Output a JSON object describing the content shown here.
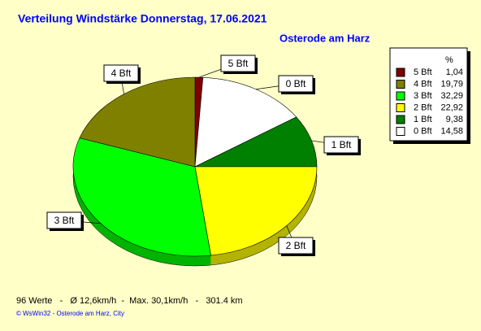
{
  "chart_data": {
    "type": "pie",
    "title": "Verteilung Windstärke  Donnerstag, 17.06.2021",
    "subtitle": "Osterode am Harz",
    "legend_header": "%",
    "categories": [
      "5 Bft",
      "0 Bft",
      "1 Bft",
      "2 Bft",
      "3 Bft",
      "4 Bft"
    ],
    "values": [
      1.04,
      14.58,
      9.38,
      22.92,
      32.29,
      19.79
    ],
    "value_labels": [
      "1,04",
      "14,58",
      "9,38",
      "22,92",
      "32,29",
      "19,79"
    ],
    "colors": [
      "#800000",
      "#ffffff",
      "#008000",
      "#ffff00",
      "#00ff00",
      "#808000"
    ],
    "legend_order": [
      0,
      5,
      4,
      3,
      2,
      1
    ],
    "footer": "96 Werte   -   Ø 12,6km/h  -  Max. 30,1km/h   -   301.4 km",
    "copyright": "© WsWin32  -  Osterode am Harz, City"
  }
}
